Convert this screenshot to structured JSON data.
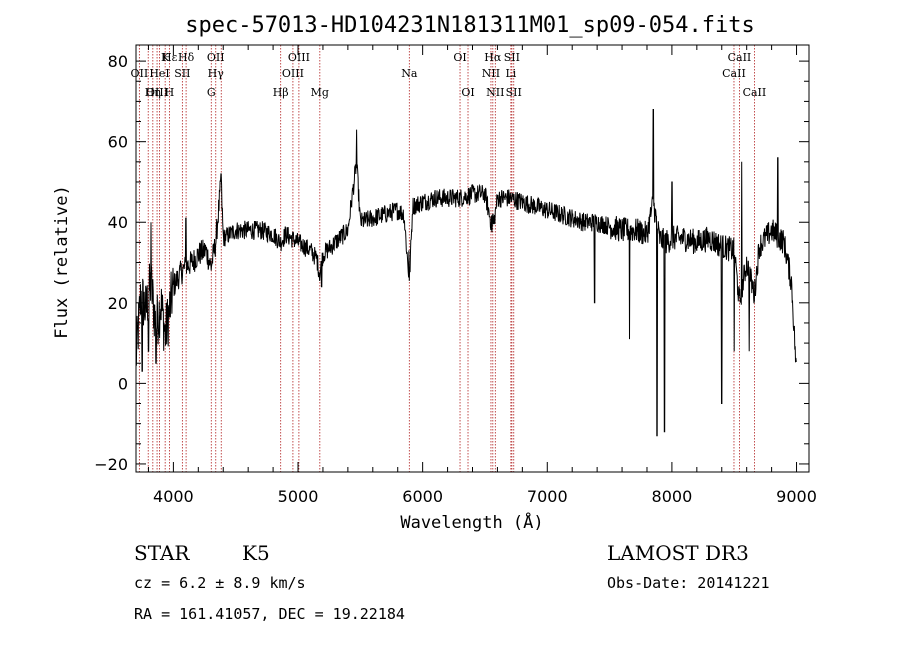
{
  "chart_data": {
    "type": "line",
    "title": "spec-57013-HD104231N181311M01_sp09-054.fits",
    "xlabel": "Wavelength (Å)",
    "ylabel": "Flux (relative)",
    "xlim": [
      3700,
      9100
    ],
    "ylim": [
      -22,
      84
    ],
    "xticks": [
      4000,
      5000,
      6000,
      7000,
      8000,
      9000
    ],
    "xtick_labels": [
      "4000",
      "5000",
      "6000",
      "7000",
      "8000",
      "9000"
    ],
    "yticks": [
      -20,
      0,
      20,
      40,
      60,
      80
    ],
    "ytick_labels": [
      "−20",
      "0",
      "20",
      "40",
      "60",
      "80"
    ],
    "spectrum_keypoints": [
      [
        3700,
        6
      ],
      [
        3740,
        22
      ],
      [
        3780,
        18
      ],
      [
        3820,
        25
      ],
      [
        3860,
        14
      ],
      [
        3900,
        20
      ],
      [
        3935,
        12
      ],
      [
        3968,
        18
      ],
      [
        4000,
        24
      ],
      [
        4050,
        27
      ],
      [
        4100,
        29
      ],
      [
        4150,
        30
      ],
      [
        4200,
        32
      ],
      [
        4260,
        33
      ],
      [
        4303,
        29
      ],
      [
        4340,
        35
      ],
      [
        4383,
        50
      ],
      [
        4400,
        36
      ],
      [
        4450,
        37
      ],
      [
        4500,
        38
      ],
      [
        4600,
        38
      ],
      [
        4700,
        38
      ],
      [
        4800,
        37
      ],
      [
        4861,
        35
      ],
      [
        4900,
        37
      ],
      [
        4950,
        36
      ],
      [
        5000,
        35
      ],
      [
        5050,
        34
      ],
      [
        5100,
        33
      ],
      [
        5150,
        31
      ],
      [
        5175,
        27
      ],
      [
        5200,
        32
      ],
      [
        5300,
        35
      ],
      [
        5400,
        38
      ],
      [
        5470,
        55
      ],
      [
        5500,
        40
      ],
      [
        5600,
        41
      ],
      [
        5700,
        42
      ],
      [
        5800,
        43
      ],
      [
        5850,
        42
      ],
      [
        5893,
        25
      ],
      [
        5920,
        44
      ],
      [
        6000,
        45
      ],
      [
        6100,
        46
      ],
      [
        6200,
        46
      ],
      [
        6300,
        46
      ],
      [
        6400,
        47
      ],
      [
        6500,
        47
      ],
      [
        6563,
        38
      ],
      [
        6600,
        46
      ],
      [
        6700,
        46
      ],
      [
        6800,
        45
      ],
      [
        6900,
        44
      ],
      [
        7000,
        43
      ],
      [
        7100,
        42
      ],
      [
        7200,
        41
      ],
      [
        7300,
        40
      ],
      [
        7400,
        40
      ],
      [
        7500,
        39
      ],
      [
        7600,
        38
      ],
      [
        7700,
        38
      ],
      [
        7800,
        37
      ],
      [
        7850,
        45
      ],
      [
        7900,
        36
      ],
      [
        7950,
        35
      ],
      [
        8000,
        36
      ],
      [
        8100,
        36
      ],
      [
        8200,
        35
      ],
      [
        8300,
        36
      ],
      [
        8400,
        34
      ],
      [
        8500,
        33
      ],
      [
        8542,
        20
      ],
      [
        8600,
        30
      ],
      [
        8662,
        22
      ],
      [
        8700,
        34
      ],
      [
        8800,
        38
      ],
      [
        8900,
        35
      ],
      [
        8960,
        25
      ],
      [
        9000,
        2
      ]
    ],
    "spectrum_features": [
      [
        4383,
        52
      ],
      [
        5470,
        63
      ],
      [
        5890,
        33
      ],
      [
        6563,
        42
      ],
      [
        7850,
        68
      ],
      [
        7880,
        -13
      ],
      [
        7940,
        -12
      ],
      [
        8000,
        50
      ],
      [
        8400,
        -5
      ],
      [
        8500,
        8
      ],
      [
        8560,
        55
      ],
      [
        8620,
        8
      ],
      [
        8850,
        56
      ],
      [
        7380,
        20
      ],
      [
        7660,
        11
      ],
      [
        3800,
        8
      ],
      [
        3860,
        5
      ],
      [
        3750,
        3
      ],
      [
        3820,
        40
      ],
      [
        4100,
        41
      ],
      [
        5190,
        24
      ]
    ],
    "line_labels": [
      {
        "label": "Hε",
        "wavelength": 3970,
        "row": 0
      },
      {
        "label": "K",
        "wavelength": 3934,
        "row": 0
      },
      {
        "label": "Hδ",
        "wavelength": 4102,
        "row": 0
      },
      {
        "label": "OII",
        "wavelength": 4340,
        "row": 0
      },
      {
        "label": "OIII",
        "wavelength": 5007,
        "row": 0
      },
      {
        "label": "OI",
        "wavelength": 6300,
        "row": 0
      },
      {
        "label": "Hα",
        "wavelength": 6563,
        "row": 0
      },
      {
        "label": "SII",
        "wavelength": 6716,
        "row": 0
      },
      {
        "label": "CaII",
        "wavelength": 8542,
        "row": 0
      },
      {
        "label": "OII",
        "wavelength": 3727,
        "row": 1
      },
      {
        "label": "HeI",
        "wavelength": 3889,
        "row": 1
      },
      {
        "label": "SII",
        "wavelength": 4072,
        "row": 1
      },
      {
        "label": "Hγ",
        "wavelength": 4340,
        "row": 1
      },
      {
        "label": "OIII",
        "wavelength": 4959,
        "row": 1
      },
      {
        "label": "Na",
        "wavelength": 5893,
        "row": 1
      },
      {
        "label": "NII",
        "wavelength": 6548,
        "row": 1
      },
      {
        "label": "Li",
        "wavelength": 6708,
        "row": 1
      },
      {
        "label": "CaII",
        "wavelength": 8498,
        "row": 1
      },
      {
        "label": "OIII",
        "wavelength": 3869,
        "row": 2
      },
      {
        "label": "Hη",
        "wavelength": 3835,
        "row": 2
      },
      {
        "label": "H",
        "wavelength": 3968,
        "row": 2
      },
      {
        "label": "G",
        "wavelength": 4304,
        "row": 2
      },
      {
        "label": "Hβ",
        "wavelength": 4861,
        "row": 2
      },
      {
        "label": "Mg",
        "wavelength": 5175,
        "row": 2
      },
      {
        "label": "OI",
        "wavelength": 6364,
        "row": 2
      },
      {
        "label": "NII",
        "wavelength": 6583,
        "row": 2
      },
      {
        "label": "SII",
        "wavelength": 6731,
        "row": 2
      },
      {
        "label": "CaII",
        "wavelength": 8662,
        "row": 2
      }
    ],
    "line_markers": [
      3727,
      3798,
      3835,
      3869,
      3889,
      3934,
      3968,
      4072,
      4102,
      4304,
      4340,
      4384,
      4861,
      4959,
      5007,
      5175,
      5893,
      6300,
      6364,
      6548,
      6563,
      6583,
      6708,
      6716,
      6731,
      8498,
      8542,
      8662
    ]
  },
  "info": {
    "object_class": "STAR",
    "subclass": "K5",
    "survey": "LAMOST DR3",
    "redshift_text": "cz = 6.2 ± 8.9 km/s",
    "obs_date_text": "Obs-Date: 20141221",
    "coords_text": "RA = 161.41057, DEC =  19.22184"
  },
  "colors": {
    "spectrum": "#000000",
    "line_marker": "#b22222",
    "axis": "#000000"
  }
}
